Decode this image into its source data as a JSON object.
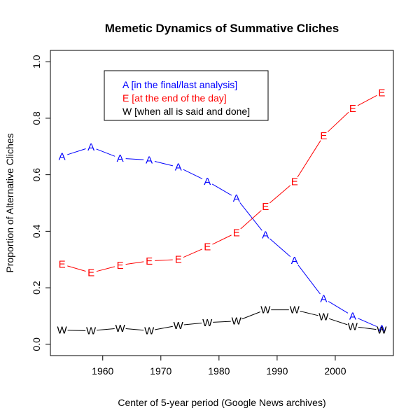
{
  "chart_data": {
    "type": "line",
    "title": "Memetic Dynamics of Summative Cliches",
    "xlabel": "Center of 5-year period (Google News archives)",
    "ylabel": "Proportion of Alternative Cliches",
    "xlim": [
      1951,
      2010
    ],
    "ylim": [
      -0.04,
      1.04
    ],
    "xticks": [
      1960,
      1970,
      1980,
      1990,
      2000
    ],
    "yticks": [
      0.0,
      0.2,
      0.4,
      0.6,
      0.8,
      1.0
    ],
    "ytick_labels": [
      "0.0",
      "0.2",
      "0.4",
      "0.6",
      "0.8",
      "1.0"
    ],
    "legend_position": "top-left",
    "x": [
      1953,
      1958,
      1963,
      1968,
      1973,
      1978,
      1983,
      1988,
      1993,
      1998,
      2003,
      2008
    ],
    "series": [
      {
        "name": "in the final/last analysis",
        "marker": "A",
        "legend_label": "A [in the final/last analysis]",
        "color": "#0000ff",
        "values": [
          0.665,
          0.698,
          0.658,
          0.652,
          0.627,
          0.577,
          0.517,
          0.387,
          0.297,
          0.162,
          0.1,
          0.055
        ]
      },
      {
        "name": "at the end of the day",
        "marker": "E",
        "legend_label": "E [at the end of the day]",
        "color": "#ff0000",
        "values": [
          0.283,
          0.253,
          0.28,
          0.295,
          0.3,
          0.345,
          0.395,
          0.487,
          0.575,
          0.738,
          0.835,
          0.89
        ]
      },
      {
        "name": "when all is said and done",
        "marker": "W",
        "legend_label": "W [when all is said and done]",
        "color": "#000000",
        "values": [
          0.05,
          0.048,
          0.057,
          0.048,
          0.067,
          0.077,
          0.082,
          0.122,
          0.122,
          0.097,
          0.063,
          0.05
        ]
      }
    ]
  }
}
